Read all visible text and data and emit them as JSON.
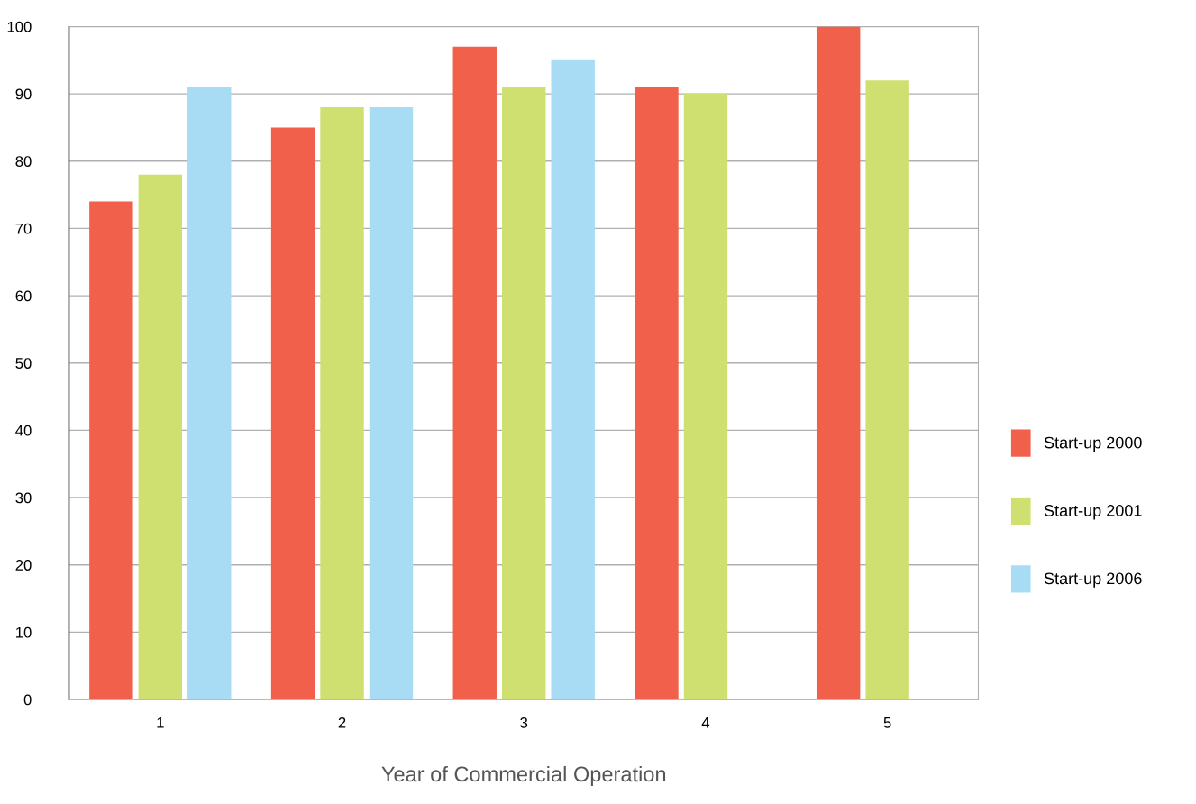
{
  "chart_data": {
    "type": "bar",
    "xlabel": "Year of Commercial Operation",
    "categories": [
      "1",
      "2",
      "3",
      "4",
      "5"
    ],
    "series": [
      {
        "name": "Start-up 2000",
        "color": "#f0604a",
        "values": [
          74,
          85,
          97,
          91,
          100
        ]
      },
      {
        "name": "Start-up 2001",
        "color": "#cfe070",
        "values": [
          78,
          88,
          91,
          90,
          92
        ]
      },
      {
        "name": "Start-up 2006",
        "color": "#a8dcf5",
        "values": [
          91,
          88,
          95,
          null,
          null
        ]
      }
    ],
    "ylim": [
      0,
      100
    ],
    "yticks": [
      0,
      10,
      20,
      30,
      40,
      50,
      60,
      70,
      80,
      90,
      100
    ],
    "grid": "y",
    "legend": "right"
  }
}
